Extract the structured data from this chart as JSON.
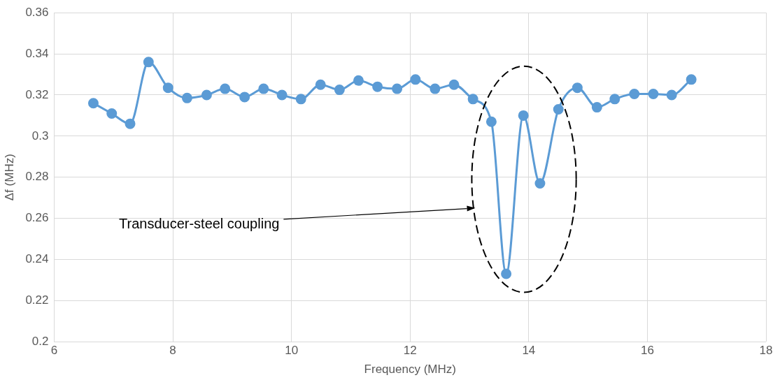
{
  "chart_data": {
    "type": "line",
    "xlabel": "Frequency (MHz)",
    "ylabel": "Δf (MHz)",
    "x": [
      6.66,
      6.97,
      7.28,
      7.59,
      7.92,
      8.24,
      8.57,
      8.88,
      9.21,
      9.53,
      9.84,
      10.16,
      10.49,
      10.81,
      11.13,
      11.45,
      11.78,
      12.09,
      12.42,
      12.74,
      13.06,
      13.37,
      13.62,
      13.91,
      14.19,
      14.5,
      14.82,
      15.15,
      15.45,
      15.78,
      16.1,
      16.41,
      16.74
    ],
    "series": [
      {
        "color": "#5b9bd5",
        "values": [
          0.316,
          0.311,
          0.306,
          0.336,
          0.3235,
          0.3185,
          0.32,
          0.323,
          0.319,
          0.323,
          0.32,
          0.318,
          0.325,
          0.3225,
          0.327,
          0.324,
          0.323,
          0.3275,
          0.323,
          0.325,
          0.318,
          0.307,
          0.233,
          0.31,
          0.277,
          0.313,
          0.3235,
          0.314,
          0.318,
          0.3205,
          0.3205,
          0.32,
          0.3275
        ]
      }
    ],
    "xlim": [
      6,
      18
    ],
    "xticks": [
      6,
      8,
      10,
      12,
      14,
      16,
      18
    ],
    "ylim": [
      0.2,
      0.36
    ],
    "yticks": [
      0.2,
      0.22,
      0.24,
      0.26,
      0.28,
      0.3,
      0.32,
      0.34,
      0.36
    ],
    "grid": true,
    "legend": false,
    "marker": "circle",
    "line_style": "solid",
    "annotations": [
      "Transducer-steel coupling"
    ]
  }
}
